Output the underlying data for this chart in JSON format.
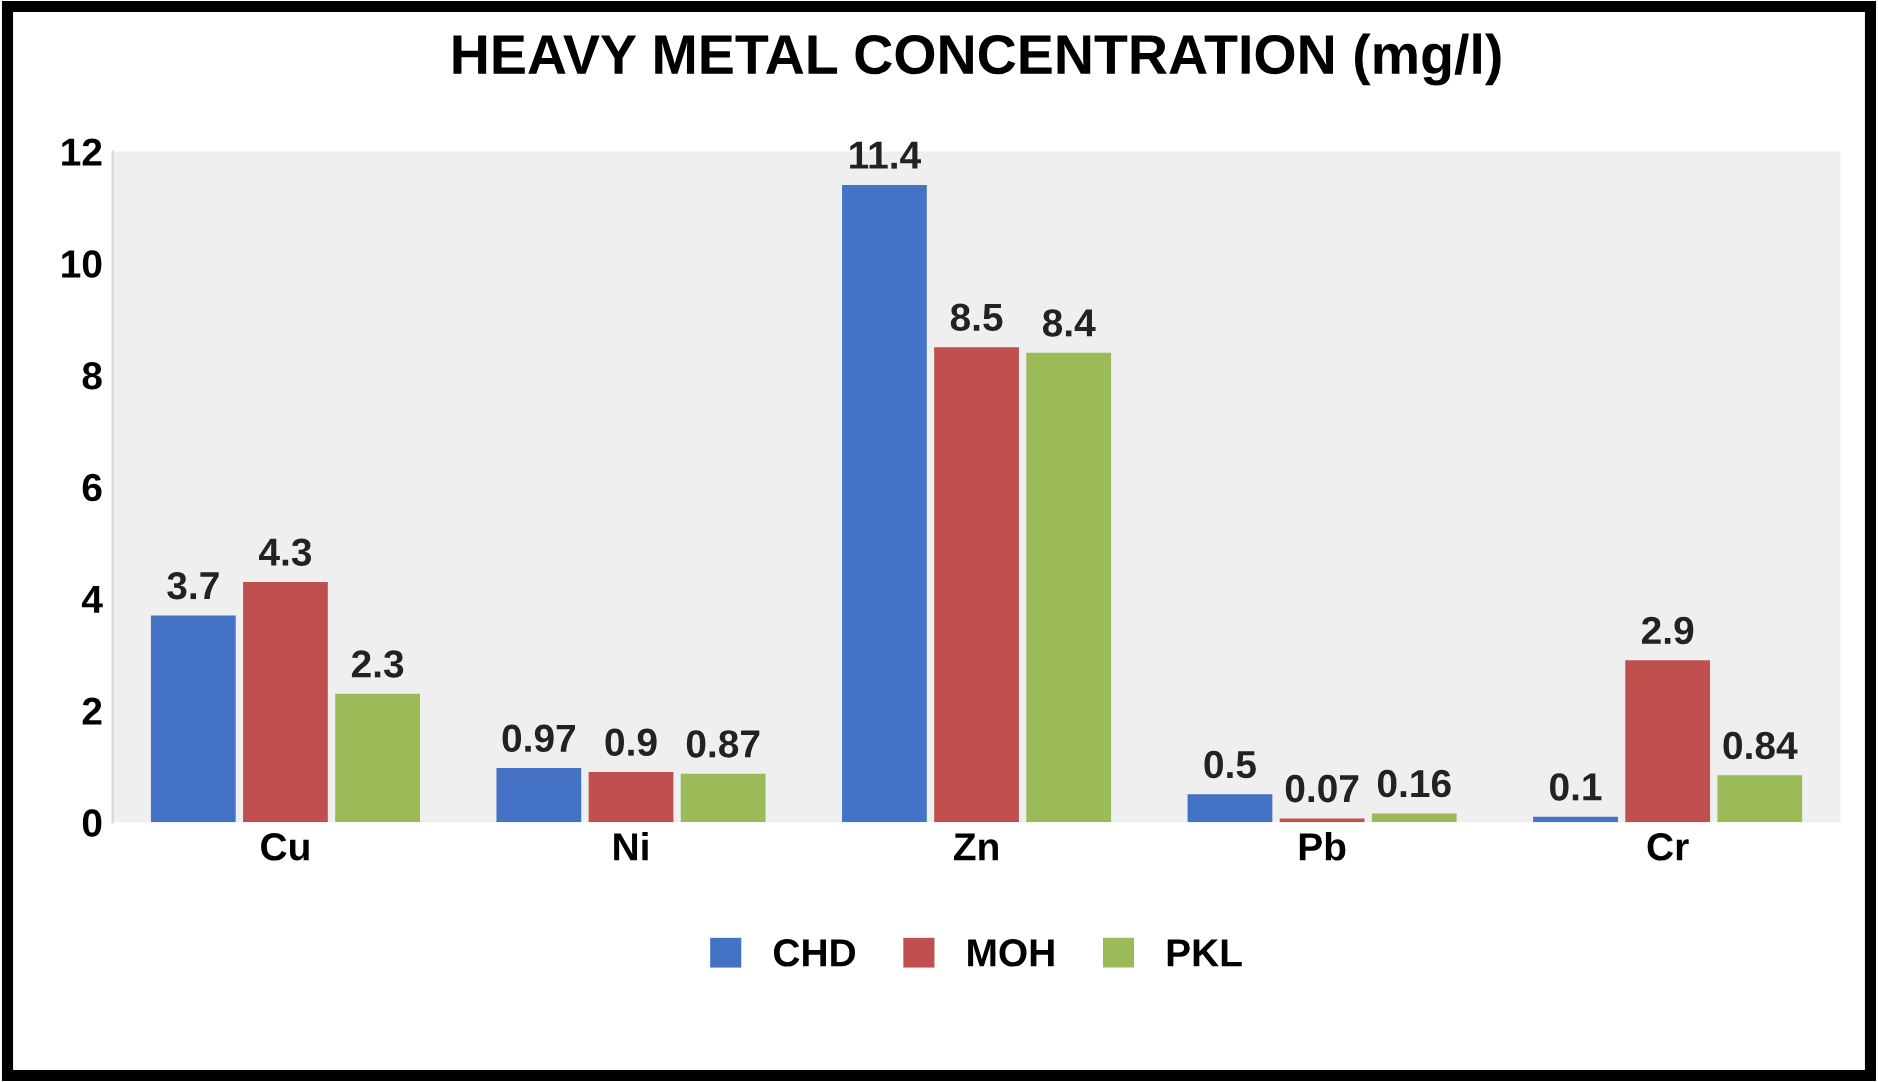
{
  "chart_data": {
    "type": "bar",
    "title": "HEAVY METAL CONCENTRATION (mg/l)",
    "categories": [
      "Cu",
      "Ni",
      "Zn",
      "Pb",
      "Cr"
    ],
    "series": [
      {
        "name": "CHD",
        "color": "#4472c4",
        "values": [
          3.7,
          0.97,
          11.4,
          0.5,
          0.1
        ]
      },
      {
        "name": "MOH",
        "color": "#c0504d",
        "values": [
          4.3,
          0.9,
          8.5,
          0.07,
          2.9
        ]
      },
      {
        "name": "PKL",
        "color": "#9bbb59",
        "values": [
          2.3,
          0.87,
          8.4,
          0.16,
          0.84
        ]
      }
    ],
    "ylim": [
      0,
      12
    ],
    "yticks": [
      0,
      2,
      4,
      6,
      8,
      10,
      12
    ],
    "data_labels": true,
    "grid": false,
    "legend": "bottom"
  }
}
